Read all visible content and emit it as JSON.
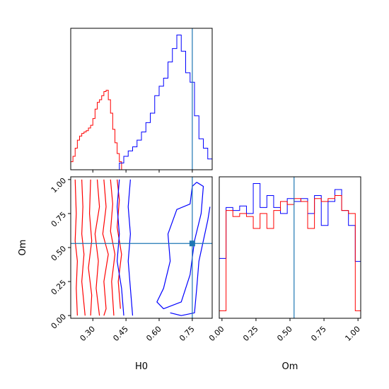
{
  "colors": {
    "series_a": "#ff0000",
    "series_b": "#0000ff",
    "truth": "#1f77b4",
    "frame": "#000000"
  },
  "chart_data": [
    {
      "type": "histogram",
      "panel": "H0 marginal (top-left)",
      "xlim": [
        0.2,
        0.84
      ],
      "show_x_ticklabels": false,
      "show_y_axis": false,
      "truth_x": 0.75,
      "series": [
        {
          "color": "red",
          "step": 0.01,
          "x": [
            0.2,
            0.21,
            0.22,
            0.23,
            0.24,
            0.25,
            0.26,
            0.27,
            0.28,
            0.29,
            0.3,
            0.31,
            0.32,
            0.33,
            0.34,
            0.35,
            0.36,
            0.37,
            0.38,
            0.39,
            0.4,
            0.41,
            0.42,
            0.43
          ],
          "values": [
            0.06,
            0.1,
            0.16,
            0.22,
            0.25,
            0.27,
            0.28,
            0.29,
            0.31,
            0.33,
            0.38,
            0.45,
            0.5,
            0.52,
            0.55,
            0.58,
            0.59,
            0.52,
            0.42,
            0.3,
            0.2,
            0.12,
            0.06,
            0.0
          ]
        },
        {
          "color": "blue",
          "step": 0.02,
          "x": [
            0.42,
            0.44,
            0.46,
            0.48,
            0.5,
            0.52,
            0.54,
            0.56,
            0.58,
            0.6,
            0.62,
            0.64,
            0.66,
            0.68,
            0.7,
            0.72,
            0.74,
            0.76,
            0.78,
            0.8,
            0.82,
            0.84
          ],
          "values": [
            0.05,
            0.1,
            0.14,
            0.17,
            0.22,
            0.28,
            0.35,
            0.42,
            0.55,
            0.62,
            0.68,
            0.8,
            0.9,
            1.0,
            0.88,
            0.72,
            0.65,
            0.4,
            0.23,
            0.16,
            0.08,
            0.0
          ]
        }
      ]
    },
    {
      "type": "contour",
      "panel": "H0 vs Om joint (bottom-left)",
      "xlabel": "H0",
      "ylabel": "Om",
      "xlim": [
        0.2,
        0.84
      ],
      "ylim": [
        -0.02,
        1.02
      ],
      "xticks": [
        0.3,
        0.45,
        0.6,
        0.75
      ],
      "xticklabels": [
        "0.30",
        "0.45",
        "0.60",
        "0.75"
      ],
      "yticks": [
        0.0,
        0.25,
        0.5,
        0.75,
        1.0
      ],
      "yticklabels": [
        "0.00",
        "0.25",
        "0.50",
        "0.75",
        "1.00"
      ],
      "truth": {
        "x": 0.75,
        "y": 0.53
      },
      "contours": [
        {
          "color": "red",
          "points": [
            [
              0.22,
              1.0
            ],
            [
              0.225,
              0.75
            ],
            [
              0.22,
              0.55
            ],
            [
              0.23,
              0.4
            ],
            [
              0.225,
              0.2
            ],
            [
              0.23,
              0.0
            ]
          ]
        },
        {
          "color": "red",
          "points": [
            [
              0.25,
              1.0
            ],
            [
              0.255,
              0.8
            ],
            [
              0.25,
              0.6
            ],
            [
              0.26,
              0.45
            ],
            [
              0.25,
              0.25
            ],
            [
              0.265,
              0.0
            ]
          ]
        },
        {
          "color": "red",
          "points": [
            [
              0.29,
              1.0
            ],
            [
              0.285,
              0.75
            ],
            [
              0.295,
              0.55
            ],
            [
              0.28,
              0.35
            ],
            [
              0.295,
              0.15
            ],
            [
              0.29,
              0.0
            ]
          ]
        },
        {
          "color": "red",
          "points": [
            [
              0.32,
              1.0
            ],
            [
              0.33,
              0.8
            ],
            [
              0.31,
              0.6
            ],
            [
              0.325,
              0.4
            ],
            [
              0.315,
              0.2
            ],
            [
              0.33,
              0.0
            ]
          ]
        },
        {
          "color": "red",
          "points": [
            [
              0.35,
              1.0
            ],
            [
              0.36,
              0.8
            ],
            [
              0.345,
              0.6
            ],
            [
              0.37,
              0.45
            ],
            [
              0.35,
              0.25
            ],
            [
              0.36,
              0.05
            ],
            [
              0.35,
              0.0
            ]
          ]
        },
        {
          "color": "red",
          "points": [
            [
              0.38,
              1.0
            ],
            [
              0.39,
              0.82
            ],
            [
              0.38,
              0.62
            ],
            [
              0.4,
              0.45
            ],
            [
              0.385,
              0.25
            ],
            [
              0.395,
              0.0
            ]
          ]
        },
        {
          "color": "red",
          "points": [
            [
              0.41,
              1.0
            ],
            [
              0.42,
              0.85
            ],
            [
              0.41,
              0.65
            ],
            [
              0.43,
              0.45
            ],
            [
              0.415,
              0.25
            ],
            [
              0.425,
              0.05
            ]
          ]
        },
        {
          "color": "blue",
          "points": [
            [
              0.42,
              1.0
            ],
            [
              0.41,
              0.8
            ],
            [
              0.42,
              0.6
            ],
            [
              0.41,
              0.4
            ],
            [
              0.43,
              0.2
            ],
            [
              0.44,
              0.0
            ]
          ]
        },
        {
          "color": "blue",
          "points": [
            [
              0.47,
              1.0
            ],
            [
              0.46,
              0.8
            ],
            [
              0.47,
              0.6
            ],
            [
              0.46,
              0.4
            ],
            [
              0.47,
              0.2
            ],
            [
              0.48,
              0.0
            ]
          ]
        },
        {
          "color": "blue",
          "points": [
            [
              0.77,
              0.98
            ],
            [
              0.8,
              0.95
            ],
            [
              0.79,
              0.75
            ],
            [
              0.76,
              0.55
            ],
            [
              0.74,
              0.3
            ],
            [
              0.7,
              0.1
            ],
            [
              0.62,
              0.05
            ],
            [
              0.59,
              0.1
            ],
            [
              0.62,
              0.2
            ],
            [
              0.65,
              0.4
            ],
            [
              0.64,
              0.6
            ],
            [
              0.68,
              0.78
            ],
            [
              0.74,
              0.82
            ],
            [
              0.75,
              0.95
            ],
            [
              0.77,
              0.98
            ]
          ]
        },
        {
          "color": "blue",
          "points": [
            [
              0.83,
              0.8
            ],
            [
              0.82,
              0.7
            ],
            [
              0.8,
              0.55
            ],
            [
              0.78,
              0.4
            ],
            [
              0.77,
              0.2
            ],
            [
              0.76,
              0.02
            ],
            [
              0.7,
              0.0
            ],
            [
              0.65,
              0.02
            ]
          ]
        }
      ]
    },
    {
      "type": "histogram",
      "panel": "Om marginal (bottom-right)",
      "xlabel": "Om",
      "xlim": [
        -0.02,
        1.02
      ],
      "xticks": [
        0.0,
        0.25,
        0.5,
        0.75,
        1.0
      ],
      "xticklabels": [
        "0.00",
        "0.25",
        "0.50",
        "0.75",
        "1.00"
      ],
      "show_y_axis": false,
      "truth_x": 0.53,
      "series": [
        {
          "color": "blue",
          "step": 0.05,
          "x": [
            -0.02,
            0.03,
            0.08,
            0.13,
            0.18,
            0.23,
            0.28,
            0.33,
            0.38,
            0.43,
            0.48,
            0.53,
            0.58,
            0.63,
            0.68,
            0.73,
            0.78,
            0.83,
            0.88,
            0.93,
            0.98
          ],
          "values": [
            0.4,
            0.74,
            0.72,
            0.75,
            0.7,
            0.9,
            0.74,
            0.82,
            0.74,
            0.7,
            0.8,
            0.78,
            0.8,
            0.7,
            0.82,
            0.62,
            0.78,
            0.86,
            0.72,
            0.62,
            0.38
          ]
        },
        {
          "color": "red",
          "step": 0.05,
          "x": [
            -0.02,
            0.03,
            0.08,
            0.13,
            0.18,
            0.23,
            0.28,
            0.33,
            0.38,
            0.43,
            0.48,
            0.53,
            0.58,
            0.63,
            0.68,
            0.73,
            0.78,
            0.83,
            0.88,
            0.93,
            0.98
          ],
          "values": [
            0.05,
            0.72,
            0.68,
            0.7,
            0.68,
            0.6,
            0.7,
            0.6,
            0.72,
            0.78,
            0.76,
            0.8,
            0.78,
            0.6,
            0.8,
            0.78,
            0.8,
            0.82,
            0.72,
            0.7,
            0.05
          ]
        }
      ]
    }
  ]
}
